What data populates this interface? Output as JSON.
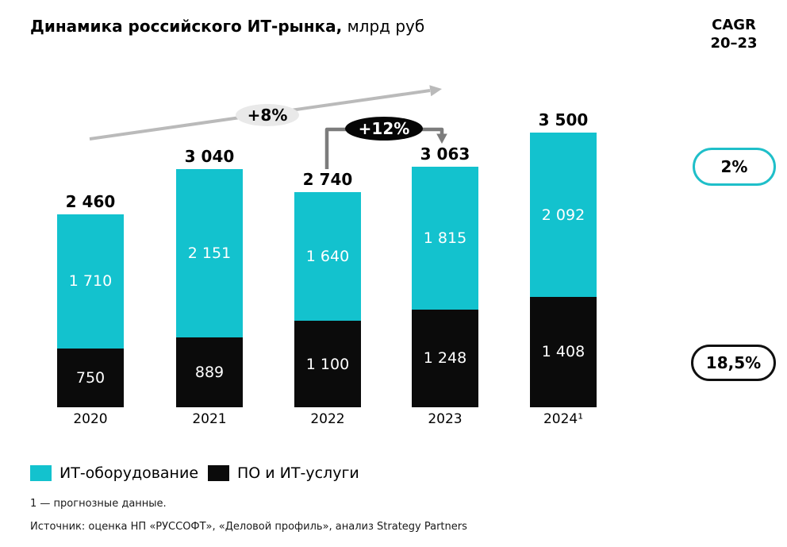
{
  "title": {
    "bold": "Динамика российского ИТ-рынка,",
    "unit": " млрд руб"
  },
  "cagr_header": {
    "line1": "CAGR",
    "line2": "20–23"
  },
  "annotations": {
    "growth_2020_2023": "+8%",
    "growth_2022_2023": "+12%"
  },
  "cagr_pills": {
    "equipment": {
      "value": "2%",
      "border_color": "#1FBFC9"
    },
    "software": {
      "value": "18,5%",
      "border_color": "#101010"
    }
  },
  "colors": {
    "equipment": "#13C2CE",
    "software": "#0B0B0B",
    "light_arrow": "#BABABA",
    "dark_arrow": "#7C7C7C",
    "light_badge_bg": "#E9E9E9",
    "dark_badge_bg": "#060606"
  },
  "chart_data": {
    "type": "bar",
    "stacked": true,
    "title": "Динамика российского ИТ-рынка, млрд руб",
    "categories": [
      "2020",
      "2021",
      "2022",
      "2023",
      "2024"
    ],
    "category_labels": [
      "2020",
      "2021",
      "2022",
      "2023",
      "2024¹"
    ],
    "series": [
      {
        "name": "ИТ-оборудование",
        "color": "#13C2CE",
        "values": [
          1710,
          2151,
          1640,
          1815,
          2092
        ],
        "labels": [
          "1 710",
          "2 151",
          "1 640",
          "1 815",
          "2 092"
        ]
      },
      {
        "name": "ПО и ИТ-услуги",
        "color": "#0B0B0B",
        "values": [
          750,
          889,
          1100,
          1248,
          1408
        ],
        "labels": [
          "750",
          "889",
          "1 100",
          "1 248",
          "1 408"
        ]
      }
    ],
    "totals": [
      2460,
      3040,
      2740,
      3063,
      3500
    ],
    "total_labels": [
      "2 460",
      "3 040",
      "2 740",
      "3 063",
      "3 500"
    ],
    "ylim": [
      0,
      3500
    ],
    "grid": false,
    "axes_visible": false,
    "legend_position": "bottom",
    "annotations": [
      {
        "text": "+8%",
        "style": "light-ellipse",
        "about": "trend arrow 2020→2023"
      },
      {
        "text": "+12%",
        "style": "dark-ellipse",
        "about": "growth 2022→2023"
      },
      {
        "text": "2%",
        "style": "cyan-outline-pill",
        "about": "CAGR 20–23 ИТ-оборудование"
      },
      {
        "text": "18,5%",
        "style": "black-outline-pill",
        "about": "CAGR 20–23 ПО и ИТ-услуги"
      }
    ]
  },
  "legend": {
    "items": [
      {
        "label": "ИТ-оборудование",
        "color": "#13C2CE"
      },
      {
        "label": "ПО и ИТ-услуги",
        "color": "#0B0B0B"
      }
    ]
  },
  "footnote": "1 —  прогнозные данные.",
  "source": "Источник: оценка НП «РУССОФТ», «Деловой профиль», анализ Strategy Partners"
}
